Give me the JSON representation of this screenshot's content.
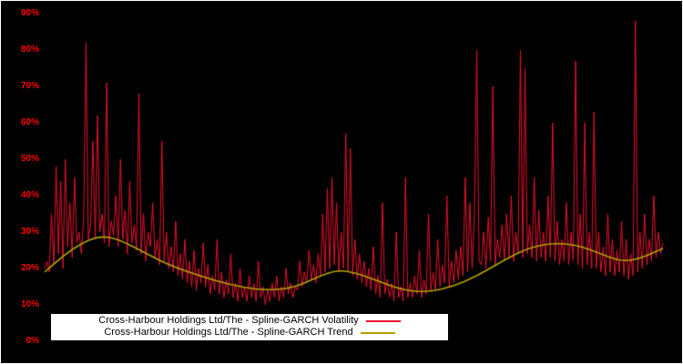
{
  "colors": {
    "background": "#000000",
    "frame": "#ffffff",
    "axis_label_red": "#ff0000",
    "series_red": "#e8112d",
    "trend_yellow": "#b5a100",
    "legend_bg": "#ffffff"
  },
  "y_axis": {
    "labels": [
      "0%",
      "10%",
      "20%",
      "30%",
      "40%",
      "50%",
      "60%",
      "70%",
      "80%",
      "90%"
    ],
    "min": 0,
    "max": 90
  },
  "legend": {
    "items": [
      {
        "label": "Cross-Harbour Holdings Ltd/The - Spline-GARCH Volatility",
        "color": "#e8112d"
      },
      {
        "label": "Cross-Harbour Holdings Ltd/The - Spline-GARCH Trend",
        "color": "#b5a100"
      }
    ]
  },
  "chart_data": {
    "type": "line",
    "title": "",
    "xlabel": "",
    "ylabel": "",
    "ylim": [
      0,
      90
    ],
    "grid": false,
    "legend_position": "bottom-center",
    "series": [
      {
        "name": "Cross-Harbour Holdings Ltd/The - Spline-GARCH Volatility",
        "color": "#e8112d",
        "unit": "%",
        "values": [
          20,
          22,
          19,
          35,
          21,
          48,
          24,
          44,
          20,
          50,
          26,
          38,
          23,
          45,
          27,
          30,
          24,
          34,
          82,
          28,
          32,
          55,
          28,
          62,
          30,
          35,
          27,
          71,
          26,
          33,
          29,
          40,
          26,
          50,
          28,
          36,
          24,
          44,
          27,
          32,
          25,
          68,
          24,
          35,
          22,
          30,
          26,
          38,
          23,
          28,
          21,
          55,
          22,
          30,
          20,
          26,
          19,
          33,
          18,
          24,
          17,
          28,
          16,
          22,
          15,
          25,
          14,
          20,
          16,
          27,
          15,
          21,
          13,
          18,
          14,
          28,
          13,
          19,
          12,
          17,
          13,
          24,
          12,
          16,
          11,
          20,
          12,
          15,
          11,
          18,
          12,
          16,
          11,
          22,
          12,
          15,
          10,
          14,
          11,
          16,
          12,
          18,
          11,
          15,
          12,
          20,
          13,
          16,
          12,
          15,
          14,
          22,
          15,
          19,
          16,
          25,
          17,
          21,
          16,
          24,
          18,
          35,
          19,
          42,
          20,
          45,
          21,
          38,
          19,
          30,
          20,
          57,
          19,
          53,
          18,
          28,
          17,
          24,
          16,
          22,
          15,
          20,
          14,
          26,
          13,
          18,
          12,
          38,
          13,
          17,
          12,
          16,
          11,
          30,
          12,
          15,
          11,
          45,
          12,
          16,
          12,
          18,
          13,
          25,
          12,
          17,
          13,
          35,
          14,
          19,
          14,
          28,
          15,
          21,
          16,
          40,
          15,
          22,
          16,
          25,
          17,
          26,
          18,
          45,
          19,
          38,
          20,
          35,
          80,
          22,
          21,
          30,
          20,
          34,
          22,
          70,
          21,
          28,
          23,
          32,
          22,
          35,
          23,
          40,
          22,
          30,
          24,
          80,
          23,
          75,
          24,
          32,
          23,
          45,
          22,
          36,
          23,
          30,
          22,
          40,
          23,
          60,
          22,
          33,
          21,
          28,
          22,
          38,
          21,
          30,
          22,
          77,
          21,
          35,
          20,
          60,
          21,
          30,
          20,
          63,
          20,
          30,
          19,
          26,
          18,
          35,
          19,
          28,
          18,
          25,
          19,
          33,
          18,
          28,
          17,
          24,
          18,
          88,
          19,
          30,
          20,
          35,
          21,
          28,
          22,
          40,
          23,
          30,
          24,
          27
        ]
      },
      {
        "name": "Cross-Harbour Holdings Ltd/The - Spline-GARCH Trend",
        "color": "#b5a100",
        "unit": "%",
        "x": [
          0,
          0.03,
          0.06,
          0.09,
          0.12,
          0.16,
          0.2,
          0.25,
          0.3,
          0.35,
          0.4,
          0.44,
          0.47,
          0.5,
          0.54,
          0.58,
          0.62,
          0.66,
          0.7,
          0.74,
          0.78,
          0.82,
          0.86,
          0.9,
          0.93,
          0.96,
          1.0
        ],
        "values": [
          19,
          23.5,
          27,
          29,
          28,
          24.5,
          21,
          18,
          15.5,
          14,
          14.5,
          17.5,
          19.5,
          19,
          16.5,
          14,
          13.5,
          15,
          18,
          22,
          25.5,
          27,
          26.5,
          24,
          22,
          22.5,
          25.5
        ]
      }
    ]
  }
}
